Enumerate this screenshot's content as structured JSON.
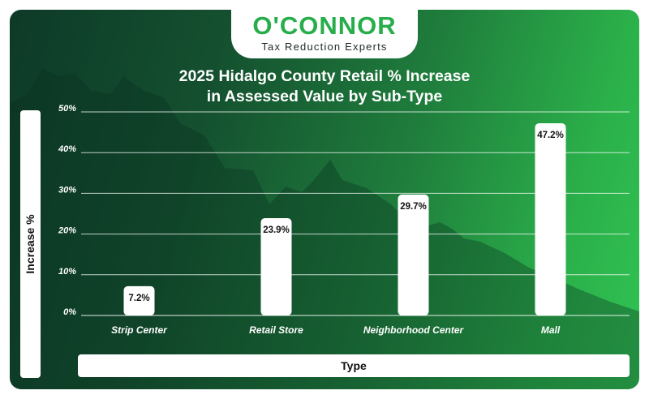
{
  "brand": {
    "name": "O'CONNOR",
    "tagline": "Tax Reduction Experts"
  },
  "colors": {
    "brand_green": "#27ae4b",
    "bar_fill": "#ffffff",
    "gridline": "#ffffff",
    "background_dark": "#0d3a28",
    "background_light": "#31c353"
  },
  "chart_data": {
    "type": "bar",
    "title_line1": "2025 Hidalgo County Retail % Increase",
    "title_line2": "in Assessed Value by Sub-Type",
    "xlabel": "Type",
    "ylabel": "Increase %",
    "categories": [
      "Strip Center",
      "Retail Store",
      "Neighborhood Center",
      "Mall"
    ],
    "values": [
      7.2,
      23.9,
      29.7,
      47.2
    ],
    "data_labels": [
      "7.2%",
      "23.9%",
      "29.7%",
      "47.2%"
    ],
    "ylim": [
      0,
      50
    ],
    "yticks": [
      0,
      10,
      20,
      30,
      40,
      50
    ],
    "ytick_labels": [
      "0%",
      "10%",
      "20%",
      "30%",
      "40%",
      "50%"
    ],
    "grid": true,
    "legend": "none"
  }
}
